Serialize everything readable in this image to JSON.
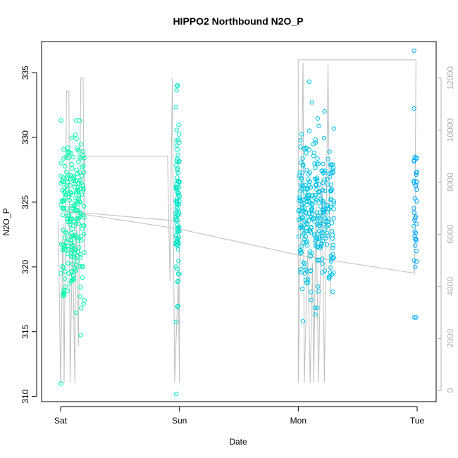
{
  "chart_data": {
    "type": "scatter",
    "title": "HIPPO2 Northbound N2O_P",
    "xlabel": "Date",
    "ylabel": "N2O_P",
    "x_ticks": [
      {
        "day": 0,
        "label": "Sat"
      },
      {
        "day": 1,
        "label": "Sun"
      },
      {
        "day": 2,
        "label": "Mon"
      },
      {
        "day": 3,
        "label": "Tue"
      }
    ],
    "xlim": [
      -0.16,
      3.16
    ],
    "ylim": [
      309.6,
      337.4
    ],
    "y_ticks": [
      310,
      315,
      320,
      325,
      330,
      335
    ],
    "y2_ticks": [
      0,
      2000,
      4000,
      6000,
      8000,
      10000,
      12000
    ],
    "y2lim": [
      -430,
      13400
    ],
    "point_color_start": "#00ffaa",
    "point_color_end": "#00aaff",
    "line_color": "#bebebe",
    "grid": false,
    "clusters": [
      {
        "day_start": 0.0,
        "day_end": 0.2,
        "count": 230,
        "y_mean": 324.0,
        "y_sd": 3.6,
        "y_min": 311.0,
        "y_max": 331.3
      },
      {
        "day_start": 0.97,
        "day_end": 1.0,
        "count": 95,
        "y_mean": 324.8,
        "y_sd": 3.8,
        "y_min": 310.2,
        "y_max": 334.0
      },
      {
        "day_start": 2.0,
        "day_end": 2.3,
        "count": 300,
        "y_mean": 324.4,
        "y_sd": 3.0,
        "y_min": 315.8,
        "y_max": 334.3
      },
      {
        "day_start": 2.97,
        "day_end": 3.0,
        "count": 40,
        "y_mean": 324.5,
        "y_sd": 3.6,
        "y_min": 316.1,
        "y_max": 336.7
      }
    ],
    "altitude_series": {
      "name": "altitude",
      "points": [
        [
          -0.02,
          6500
        ],
        [
          0.0,
          300
        ],
        [
          0.02,
          6400
        ],
        [
          0.03,
          300
        ],
        [
          0.05,
          11500
        ],
        [
          0.07,
          11500
        ],
        [
          0.08,
          300
        ],
        [
          0.1,
          6000
        ],
        [
          0.12,
          300
        ],
        [
          0.13,
          6800
        ],
        [
          0.15,
          1700
        ],
        [
          0.17,
          12000
        ],
        [
          0.19,
          12000
        ],
        [
          0.2,
          5200
        ],
        [
          0.2,
          9000
        ],
        [
          0.5,
          9000
        ],
        [
          0.9,
          9000
        ],
        [
          0.92,
          4200
        ],
        [
          0.94,
          12000
        ],
        [
          0.96,
          300
        ],
        [
          0.99,
          4400
        ],
        [
          1.0,
          300
        ],
        [
          1.0,
          6500
        ],
        [
          0.0,
          6900
        ],
        [
          1.0,
          6200
        ],
        [
          2.0,
          5200
        ],
        [
          2.98,
          4500
        ],
        [
          2.99,
          12700
        ],
        [
          2.0,
          12700
        ],
        [
          2.0,
          300
        ],
        [
          2.04,
          12600
        ],
        [
          2.05,
          300
        ],
        [
          2.08,
          5300
        ],
        [
          2.1,
          300
        ],
        [
          2.12,
          4900
        ],
        [
          2.13,
          300
        ],
        [
          2.15,
          7300
        ],
        [
          2.17,
          300
        ],
        [
          2.2,
          8100
        ],
        [
          2.22,
          300
        ],
        [
          2.25,
          12500
        ],
        [
          2.27,
          3600
        ]
      ]
    }
  },
  "colors": {
    "axis": "#000000",
    "secondary_axis": "#b0b0b0"
  }
}
